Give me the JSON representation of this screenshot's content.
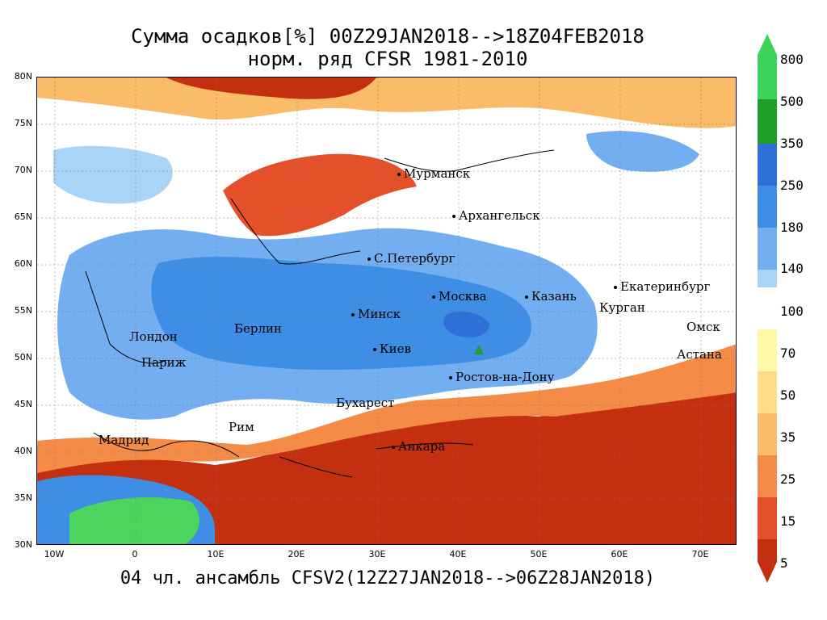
{
  "title": {
    "line1": "Сумма осадков[%] 00Z29JAN2018-->18Z04FEB2018",
    "line2": "норм. ряд CFSR 1981-2010"
  },
  "footer": "04 чл. ансамбль CFSV2(12Z27JAN2018-->06Z28JAN2018)",
  "map": {
    "lat_labels": [
      "80N",
      "75N",
      "70N",
      "65N",
      "60N",
      "55N",
      "50N",
      "45N",
      "40N",
      "35N",
      "30N"
    ],
    "lon_labels": [
      "10W",
      "0",
      "10E",
      "20E",
      "30E",
      "40E",
      "50E",
      "60E",
      "70E"
    ],
    "cities": [
      {
        "name": "Мурманск"
      },
      {
        "name": "Архангельск"
      },
      {
        "name": "С.Петербург"
      },
      {
        "name": "Москва"
      },
      {
        "name": "Казань"
      },
      {
        "name": "Екатеринбург"
      },
      {
        "name": "Курган"
      },
      {
        "name": "Омск"
      },
      {
        "name": "Астана"
      },
      {
        "name": "Минск"
      },
      {
        "name": "Берлин"
      },
      {
        "name": "Лондон"
      },
      {
        "name": "Париж"
      },
      {
        "name": "Киев"
      },
      {
        "name": "Ростов-на-Дону"
      },
      {
        "name": "Бухарест"
      },
      {
        "name": "Рим"
      },
      {
        "name": "Мадрид"
      },
      {
        "name": "Анкара"
      }
    ]
  },
  "colorbar": {
    "ticks": [
      "800",
      "500",
      "350",
      "250",
      "180",
      "140",
      "100",
      "70",
      "50",
      "35",
      "25",
      "15",
      "5"
    ],
    "colors": {
      "800": "#3cd35a",
      "500": "#1f9e2a",
      "350": "#2f6fd8",
      "250": "#3f8ee6",
      "180": "#72aef0",
      "140": "#a9d4f5",
      "100": "#d6f4f8",
      "100w": "#ffffff",
      "70": "#fff8a8",
      "50": "#fddc8c",
      "35": "#fbbc6a",
      "25": "#f48c48",
      "15": "#e3502a",
      "5": "#c4300f"
    }
  },
  "colors": {
    "brown_dark": "#b82a0a",
    "orange": "#f39a4d",
    "light_orange": "#fcd49a",
    "blue_light": "#b6def6",
    "blue_mid": "#6fabec",
    "blue_dark": "#3b7fdf",
    "green": "#4cd55e"
  }
}
